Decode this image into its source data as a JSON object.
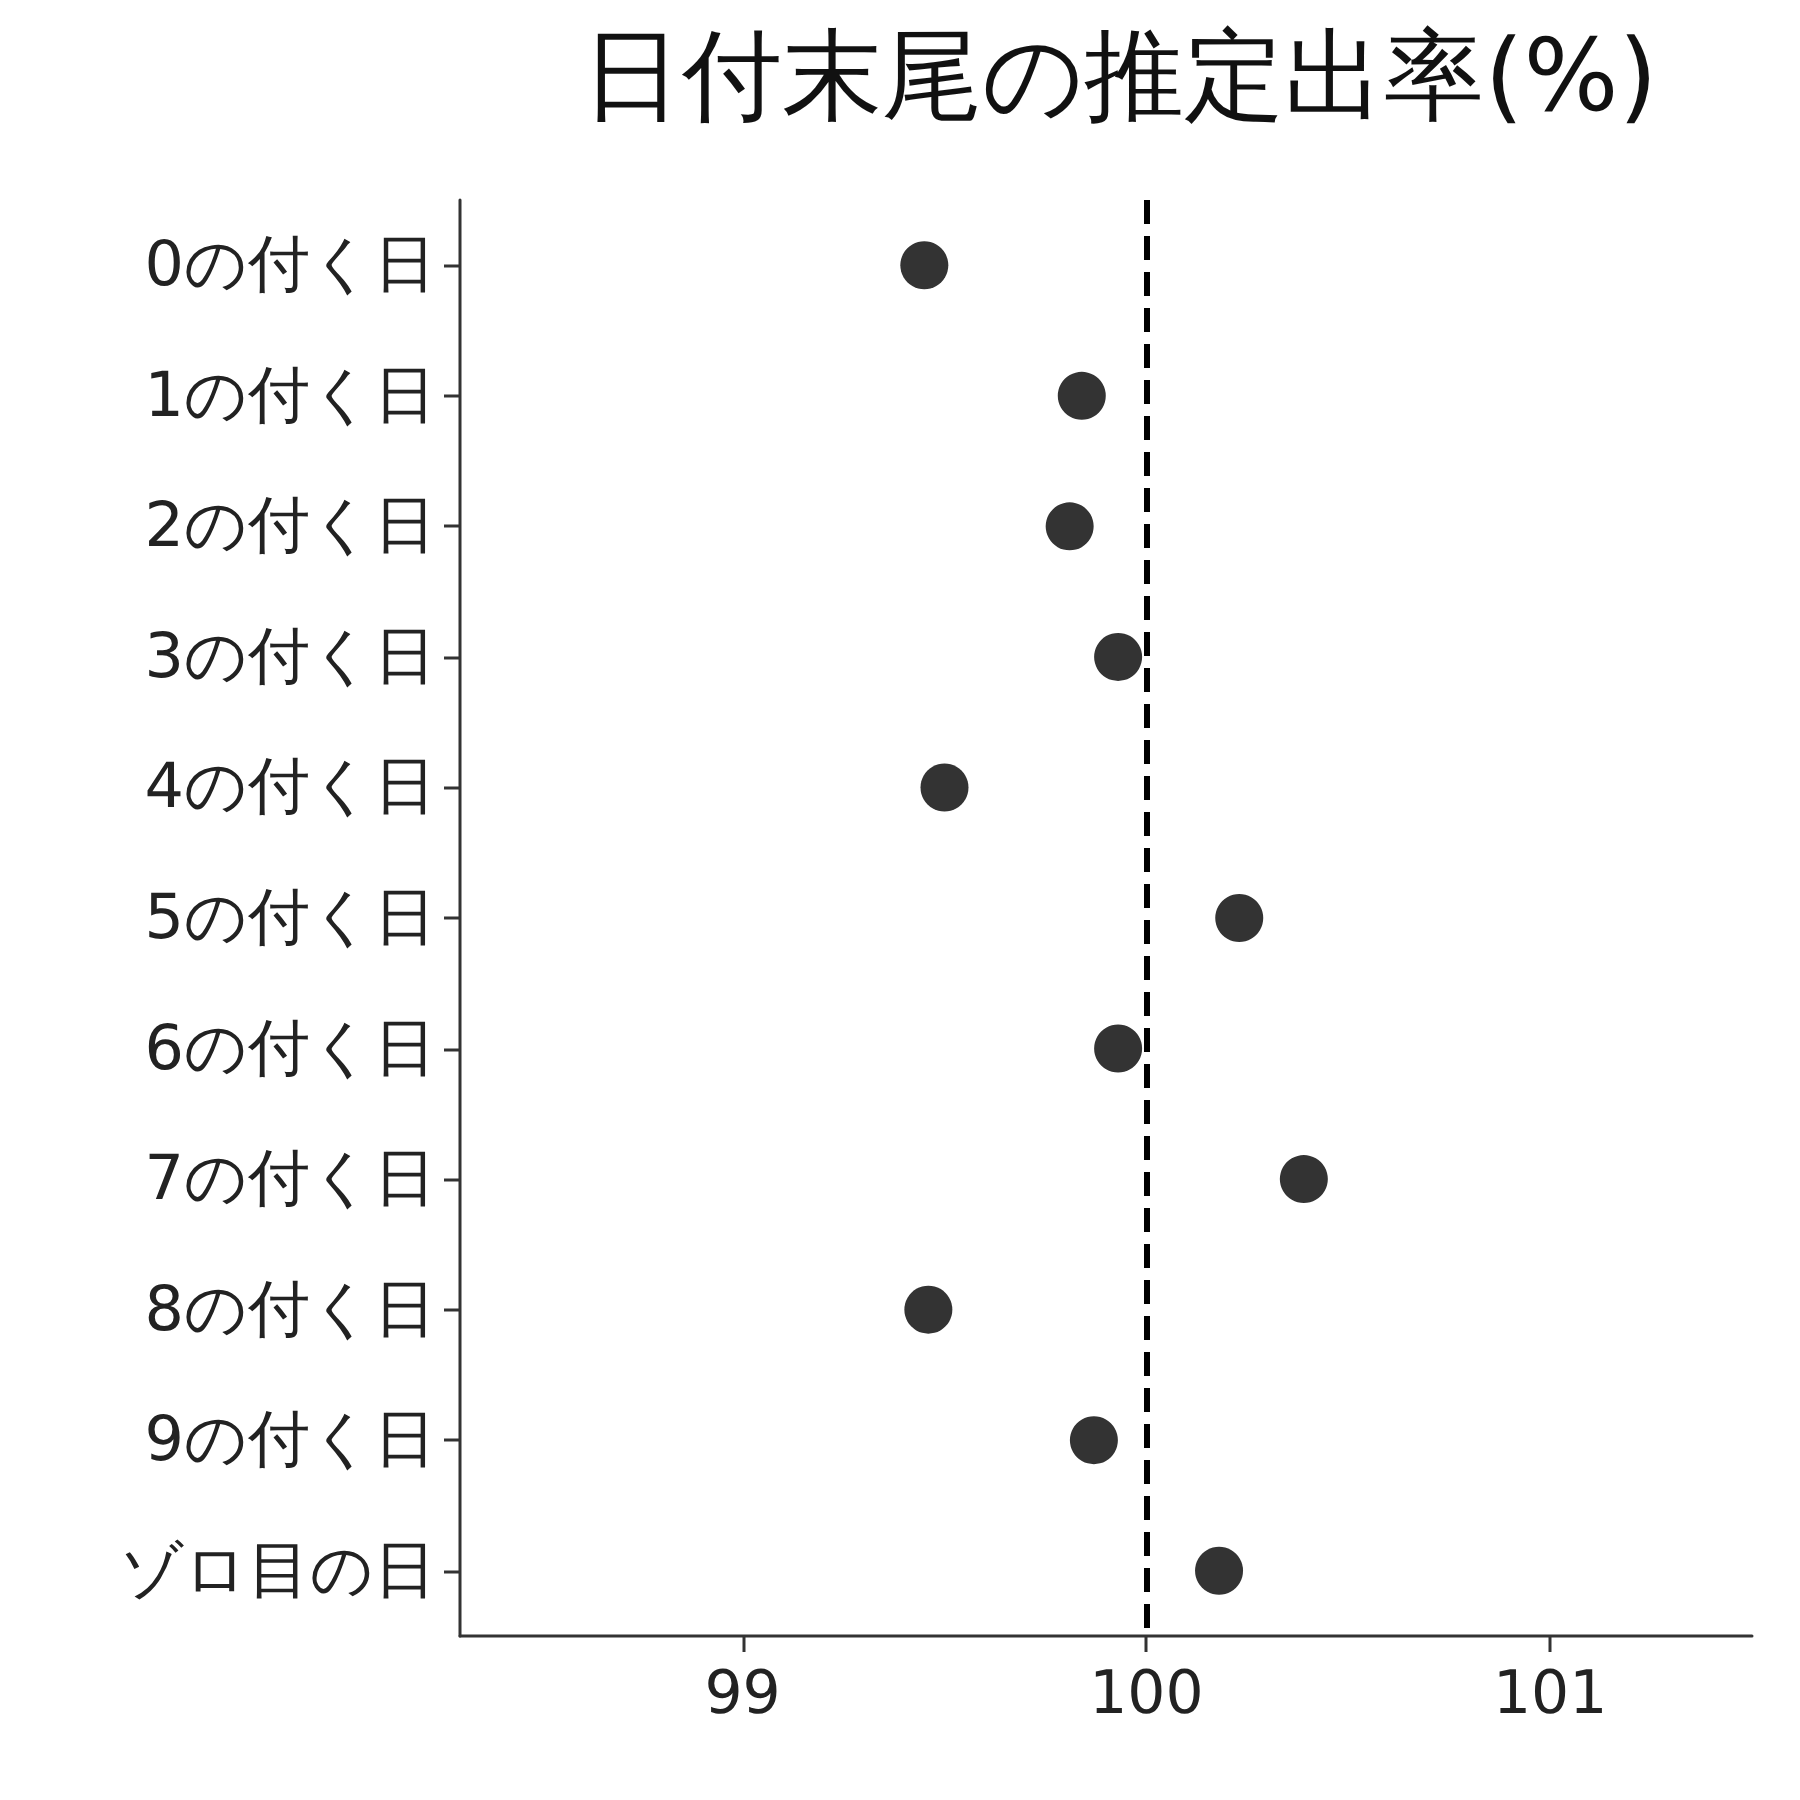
{
  "chart_data": {
    "type": "scatter",
    "title": "日付末尾の推定出率(%)",
    "orientation": "horizontal",
    "categories": [
      "0の付く日",
      "1の付く日",
      "2の付く日",
      "3の付く日",
      "4の付く日",
      "5の付く日",
      "6の付く日",
      "7の付く日",
      "8の付く日",
      "9の付く日",
      "ゾロ目の日"
    ],
    "series": [
      {
        "color": "#000000",
        "values": [
          99.45,
          99.84,
          99.81,
          99.93,
          99.5,
          100.23,
          99.93,
          100.39,
          99.46,
          99.87,
          100.18
        ]
      }
    ],
    "xlim": [
      98.3,
      101.5
    ],
    "xticks": [
      99,
      100,
      101
    ],
    "ref_lines": [
      {
        "axis": "x",
        "value": 100,
        "line_style": "dashed",
        "color": "#000000"
      }
    ],
    "grid": false,
    "marker": "circle"
  }
}
